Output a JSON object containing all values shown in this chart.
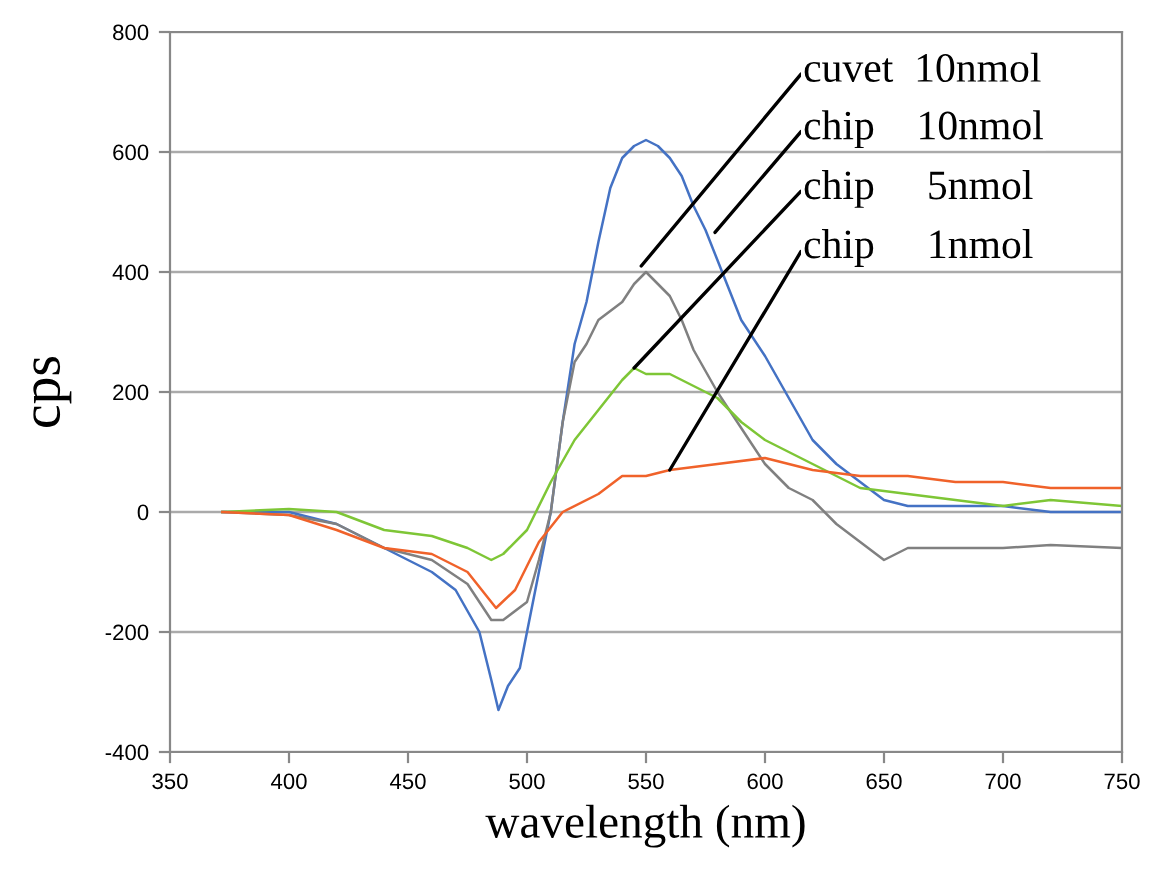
{
  "chart_data": {
    "type": "line",
    "xlabel": "wavelength (nm)",
    "ylabel": "cps",
    "xlim": [
      350,
      750
    ],
    "xticks": [
      350,
      400,
      450,
      500,
      550,
      600,
      650,
      700,
      750
    ],
    "ylim": [
      -400,
      800
    ],
    "yticks": [
      -400,
      -200,
      0,
      200,
      400,
      600,
      800
    ],
    "grid": "y",
    "series": [
      {
        "color": "#4472c4",
        "x": [
          372,
          400,
          420,
          440,
          460,
          470,
          480,
          485,
          488,
          492,
          497,
          505,
          510,
          515,
          520,
          525,
          530,
          535,
          540,
          545,
          550,
          555,
          560,
          565,
          570,
          575,
          580,
          585,
          590,
          600,
          610,
          620,
          630,
          640,
          650,
          660,
          680,
          700,
          720,
          750
        ],
        "values": [
          0,
          0,
          -20,
          -60,
          -100,
          -130,
          -200,
          -280,
          -330,
          -290,
          -260,
          -100,
          0,
          150,
          280,
          350,
          450,
          540,
          590,
          610,
          620,
          610,
          590,
          560,
          510,
          470,
          420,
          370,
          320,
          260,
          190,
          120,
          80,
          50,
          20,
          10,
          10,
          10,
          0,
          0
        ]
      },
      {
        "color": "#808080",
        "x": [
          372,
          400,
          420,
          440,
          460,
          475,
          485,
          490,
          500,
          505,
          510,
          515,
          520,
          525,
          530,
          540,
          545,
          550,
          555,
          560,
          565,
          570,
          580,
          590,
          600,
          610,
          620,
          630,
          640,
          650,
          660,
          680,
          700,
          720,
          750
        ],
        "values": [
          0,
          -5,
          -20,
          -60,
          -80,
          -120,
          -180,
          -180,
          -150,
          -80,
          0,
          150,
          250,
          280,
          320,
          350,
          380,
          400,
          380,
          360,
          320,
          270,
          200,
          140,
          80,
          40,
          20,
          -20,
          -50,
          -80,
          -60,
          -60,
          -60,
          -55,
          -60
        ]
      },
      {
        "color": "#7ec636",
        "x": [
          372,
          400,
          420,
          440,
          460,
          475,
          485,
          490,
          500,
          510,
          520,
          530,
          540,
          545,
          550,
          560,
          570,
          580,
          590,
          600,
          620,
          640,
          660,
          680,
          700,
          720,
          750
        ],
        "values": [
          0,
          5,
          0,
          -30,
          -40,
          -60,
          -80,
          -70,
          -30,
          50,
          120,
          170,
          220,
          240,
          230,
          230,
          210,
          190,
          150,
          120,
          80,
          40,
          30,
          20,
          10,
          20,
          10
        ]
      },
      {
        "color": "#f0622a",
        "x": [
          372,
          400,
          420,
          440,
          460,
          475,
          483,
          487,
          495,
          505,
          515,
          530,
          540,
          550,
          560,
          580,
          600,
          620,
          640,
          660,
          680,
          700,
          720,
          750
        ],
        "values": [
          0,
          -5,
          -30,
          -60,
          -70,
          -100,
          -140,
          -160,
          -130,
          -50,
          0,
          30,
          60,
          60,
          70,
          80,
          90,
          70,
          60,
          60,
          50,
          50,
          40,
          40
        ]
      }
    ],
    "annotations": [
      {
        "text": "cuvet  10nmol",
        "x": 548,
        "y": 410
      },
      {
        "text": "chip    10nmol",
        "x": 579,
        "y": 466
      },
      {
        "text": "chip     5nmol",
        "x": 545,
        "y": 240
      },
      {
        "text": "chip     1nmol",
        "x": 560,
        "y": 70
      }
    ]
  }
}
